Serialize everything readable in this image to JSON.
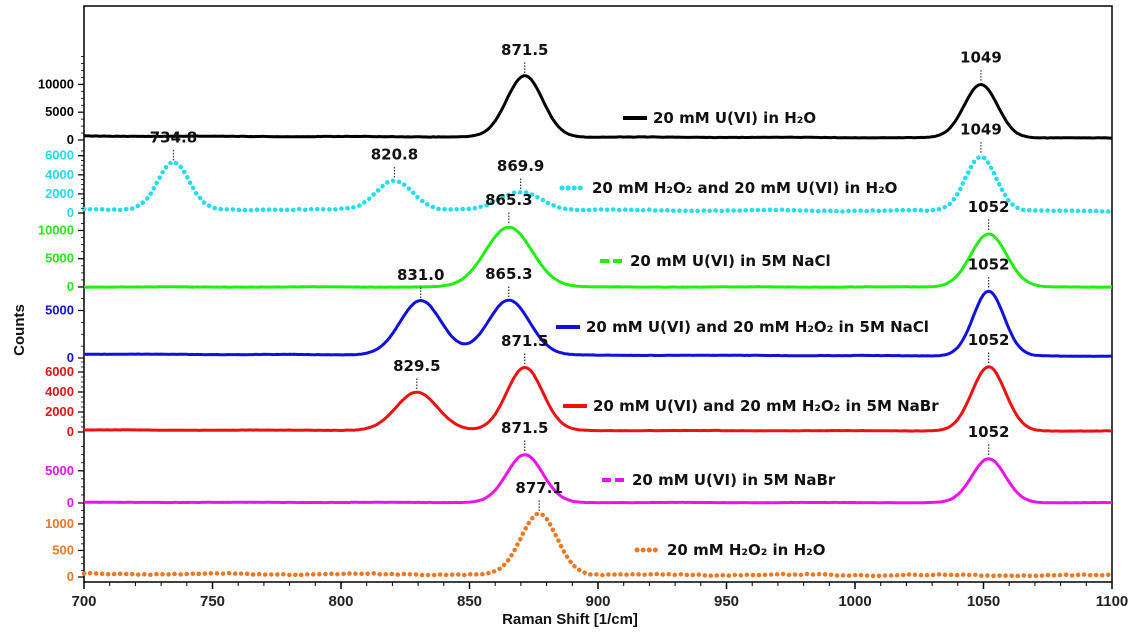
{
  "chart_data": {
    "type": "line",
    "xlabel": "Raman Shift [1/cm]",
    "ylabel": "Counts",
    "xlim": [
      700,
      1100
    ],
    "xticks": [
      700,
      750,
      800,
      850,
      900,
      950,
      1000,
      1050,
      1100
    ],
    "series": [
      {
        "name": "20 mM U(VI) in H₂O",
        "color": "#000000",
        "style": "solid",
        "ylim": [
          0,
          16000
        ],
        "yticks": [
          0,
          5000,
          10000
        ],
        "baseline": 700,
        "peaks": [
          {
            "x": 871.5,
            "height": 11000,
            "width": 7
          },
          {
            "x": 1049,
            "height": 9600,
            "width": 6.5
          }
        ],
        "labels": [
          "871.5",
          "1049"
        ]
      },
      {
        "name": "20 mM H₂O₂ and 20 mM U(VI) in H₂O",
        "color": "#22dded",
        "style": "dotted",
        "ylim": [
          0,
          6600
        ],
        "yticks": [
          0,
          2000,
          4000,
          6000
        ],
        "baseline": 400,
        "peaks": [
          {
            "x": 734.8,
            "height": 4900,
            "width": 6
          },
          {
            "x": 820.8,
            "height": 3100,
            "width": 7
          },
          {
            "x": 869.9,
            "height": 1900,
            "width": 8
          },
          {
            "x": 1049,
            "height": 5700,
            "width": 6
          }
        ],
        "labels": [
          "734.8",
          "820.8",
          "869.9",
          "1049"
        ]
      },
      {
        "name": "20 mM U(VI) in 5M NaCl",
        "color": "#22ee11",
        "style": "dashed",
        "ylim": [
          0,
          11500
        ],
        "yticks": [
          0,
          5000,
          10000
        ],
        "baseline": 0,
        "peaks": [
          {
            "x": 865.3,
            "height": 10600,
            "width": 9
          },
          {
            "x": 1052,
            "height": 9400,
            "width": 7
          }
        ],
        "labels": [
          "865.3",
          "1052"
        ]
      },
      {
        "name": "20 mM U(VI) and 20 mM H₂O₂ in 5M NaCl",
        "color": "#1111dd",
        "style": "solid",
        "ylim": [
          0,
          8000
        ],
        "yticks": [
          0,
          5000
        ],
        "baseline": 400,
        "peaks": [
          {
            "x": 831.0,
            "height": 5700,
            "width": 8
          },
          {
            "x": 865.3,
            "height": 5800,
            "width": 8
          },
          {
            "x": 1052,
            "height": 6800,
            "width": 6
          }
        ],
        "labels": [
          "831.0",
          "865.3",
          "1052"
        ]
      },
      {
        "name": "20 mM U(VI) and 20 mM H₂O₂ in 5M NaBr",
        "color": "#ee1111",
        "style": "solid",
        "ylim": [
          0,
          7000
        ],
        "yticks": [
          0,
          2000,
          4000,
          6000
        ],
        "baseline": 200,
        "peaks": [
          {
            "x": 829.5,
            "height": 3800,
            "width": 8
          },
          {
            "x": 871.5,
            "height": 6300,
            "width": 7
          },
          {
            "x": 1052,
            "height": 6400,
            "width": 6.5
          }
        ],
        "labels": [
          "829.5",
          "871.5",
          "1052"
        ]
      },
      {
        "name": "20 mM U(VI) in 5M NaBr",
        "color": "#ee11ee",
        "style": "dashed",
        "ylim": [
          0,
          9000
        ],
        "yticks": [
          0,
          5000
        ],
        "baseline": 100,
        "peaks": [
          {
            "x": 871.5,
            "height": 7400,
            "width": 7
          },
          {
            "x": 1052,
            "height": 6800,
            "width": 6.5
          }
        ],
        "labels": [
          "871.5",
          "1052"
        ]
      },
      {
        "name": "20 mM H₂O₂ in H₂O",
        "color": "#ee7722",
        "style": "dotted",
        "ylim": [
          0,
          1300
        ],
        "yticks": [
          0,
          500,
          1000
        ],
        "baseline": 60,
        "peaks": [
          {
            "x": 877.1,
            "height": 1140,
            "width": 7
          }
        ],
        "labels": [
          "877.1"
        ]
      }
    ]
  }
}
